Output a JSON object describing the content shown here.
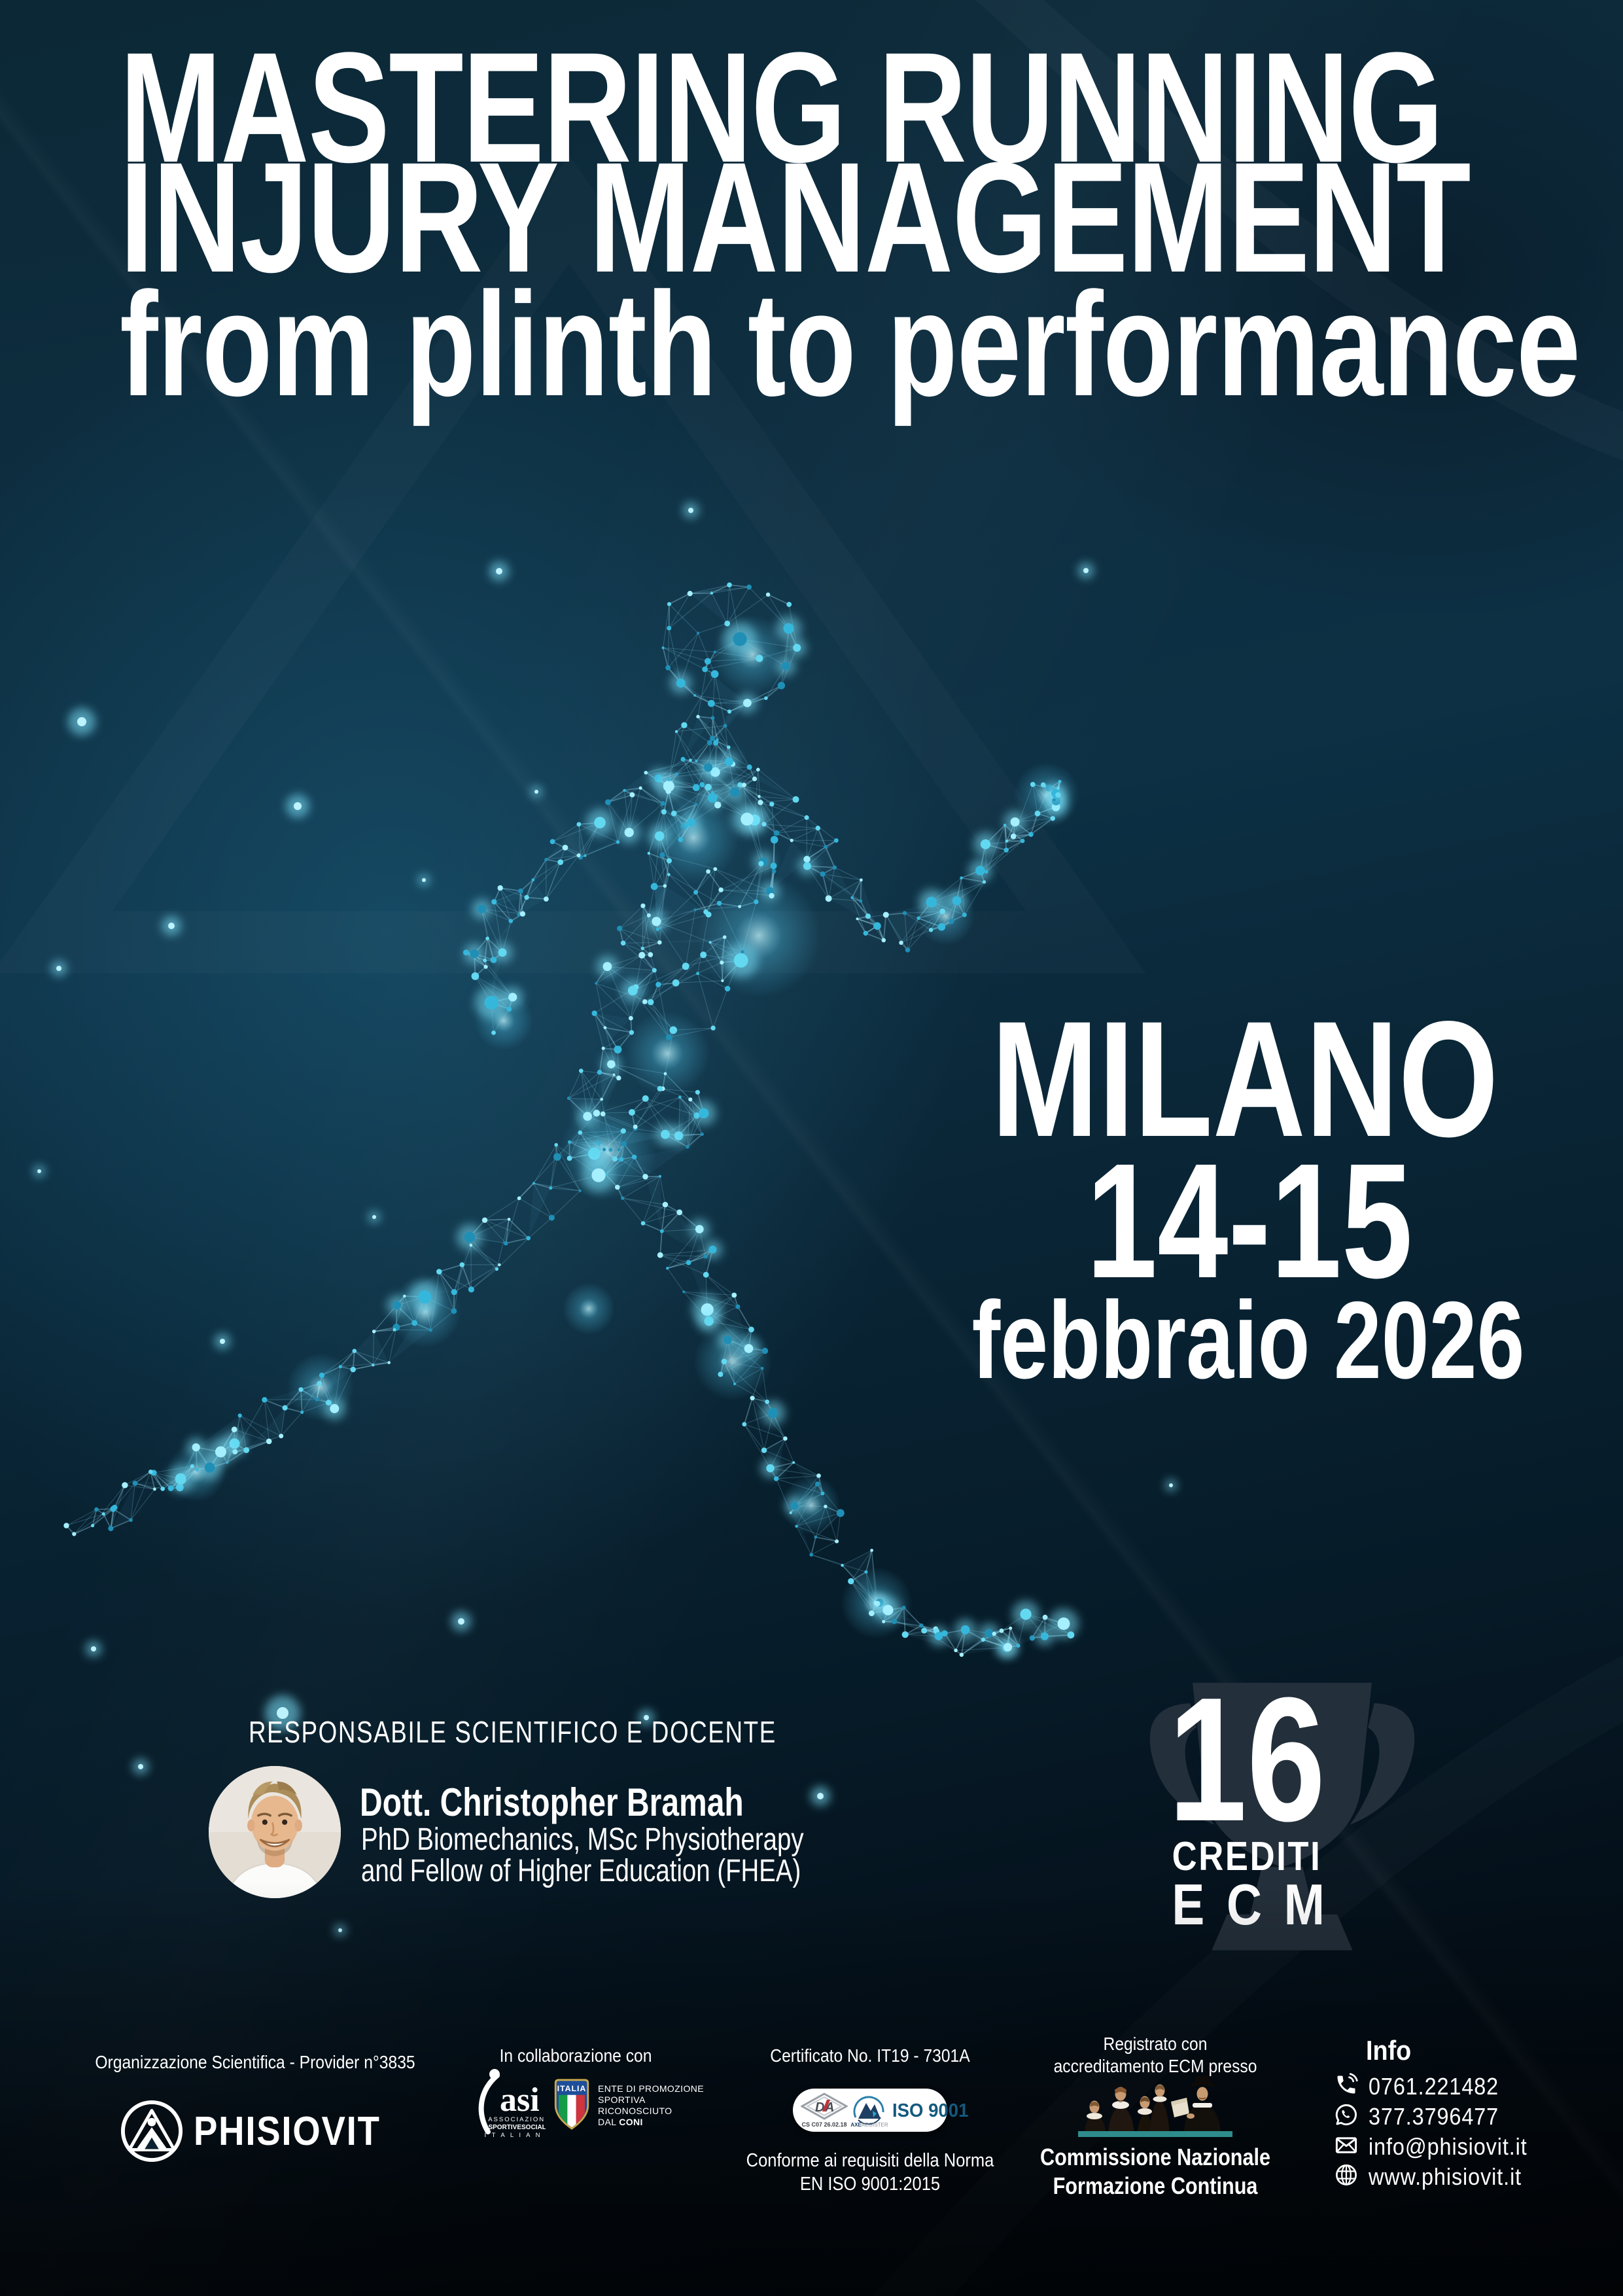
{
  "title": {
    "line1": "MASTERING RUNNING",
    "line2": "INJURY MANAGEMENT",
    "line3": "from plinth to performance"
  },
  "event": {
    "city": "MILANO",
    "dates": "14-15",
    "month_year": "febbraio 2026"
  },
  "speaker": {
    "section_label": "RESPONSABILE SCIENTIFICO E DOCENTE",
    "name": "Dott. Christopher Bramah",
    "qualification_line1": "PhD Biomechanics, MSc Physiotherapy",
    "qualification_line2": "and Fellow of Higher Education (FHEA)"
  },
  "credits": {
    "number": "16",
    "label_line1": "CREDITI",
    "label_line2": "ECM"
  },
  "footer": {
    "organization": {
      "label": "Organizzazione Scientifica - Provider n°3835",
      "brand": "PHISIOVIT"
    },
    "collaboration": {
      "label": "In collaborazione con",
      "asi_word": "asi",
      "asi_line1": "ASSOCIAZIONI",
      "asi_line2": "SPORTIVESOCIALI",
      "asi_line3": "I T A L I A N E",
      "shield_word": "ITALIA",
      "coni_line1": "ENTE DI PROMOZIONE",
      "coni_line2": "SPORTIVA",
      "coni_line3": "RICONOSCIUTO",
      "coni_line4_prefix": "DAL ",
      "coni_line4_bold": "CONI"
    },
    "certificate": {
      "label": "Certificato No. IT19 - 7301A",
      "da_mark": "DA",
      "da_sub": "CS C07  26.02.18",
      "axe_bold": "AXE",
      "axe_light": "REGISTER",
      "iso_label": "ISO 9001",
      "conformity_line1": "Conforme ai requisiti della Norma",
      "conformity_line2": "EN ISO 9001:2015"
    },
    "ecm_registration": {
      "label_line1": "Registrato con",
      "label_line2": "accreditamento ECM presso",
      "commission_line1": "Commissione Nazionale",
      "commission_line2": "Formazione Continua"
    },
    "info": {
      "label": "Info",
      "phone": "0761.221482",
      "whatsapp": "377.3796477",
      "email": "info@phisiovit.it",
      "website": "www.phisiovit.it"
    }
  },
  "colors": {
    "background_top": "#0d2c3e",
    "background_bottom": "#03090f",
    "accent_cyan": "#35b7dc",
    "runner_palette": [
      "#1f8fb6",
      "#35b7dc",
      "#63d8f1",
      "#a5efff"
    ],
    "glow": "#7fe7ff",
    "mesh_line": "rgba(140,220,245,0.22)",
    "ecm_bar_teal": "#2e8c8c",
    "iso_blue": "#14597f",
    "shield_blue": "#1e4e9a",
    "shield_gold": "#c9a84e",
    "flag_green": "#169b47",
    "flag_red": "#d0343c",
    "trophy_gray": "#232f3a"
  }
}
